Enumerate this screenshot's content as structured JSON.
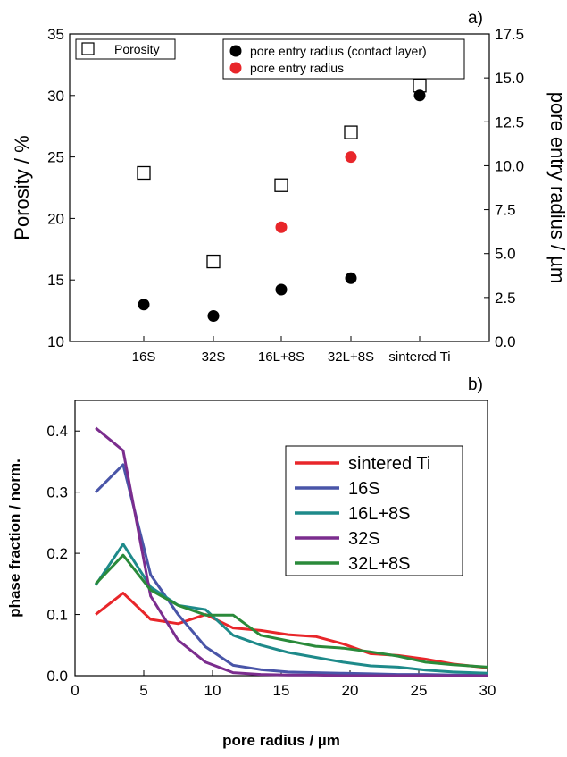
{
  "chart_data": [
    {
      "panel_label": "a)",
      "type": "scatter",
      "categories": [
        "16S",
        "32S",
        "16L+8S",
        "32L+8S",
        "sintered Ti"
      ],
      "ylabel": "Porosity / %",
      "ylim": [
        10,
        35
      ],
      "yticks": [
        10,
        15,
        20,
        25,
        30,
        35
      ],
      "y2label": "pore entry radius / µm",
      "y2lim": [
        0,
        17.5
      ],
      "y2ticks": [
        "0.0",
        "2.5",
        "5.0",
        "7.5",
        "10.0",
        "12.5",
        "15.0",
        "17.5"
      ],
      "series": [
        {
          "name": "Porosity",
          "axis": "left",
          "marker": "open-square",
          "color": "#000000",
          "values": [
            23.7,
            16.5,
            22.7,
            27.0,
            30.8
          ]
        },
        {
          "name": "pore entry radius (contact layer)",
          "axis": "right",
          "marker": "filled-circle",
          "color": "#000000",
          "values": [
            2.1,
            1.45,
            2.95,
            3.6,
            14.0
          ]
        },
        {
          "name": "pore entry radius",
          "axis": "right",
          "marker": "filled-circle",
          "color": "#e8262a",
          "values": [
            null,
            null,
            6.5,
            10.5,
            null
          ]
        }
      ],
      "legends": [
        {
          "position": "top-left",
          "entries": [
            "Porosity"
          ]
        },
        {
          "position": "top-right",
          "entries": [
            "pore entry radius (contact layer)",
            "pore entry radius"
          ]
        }
      ]
    },
    {
      "panel_label": "b)",
      "type": "line",
      "xlabel": "pore radius / µm",
      "ylabel": "phase fraction / norm.",
      "xlim": [
        0,
        30
      ],
      "ylim": [
        0,
        0.45
      ],
      "xticks": [
        0,
        5,
        10,
        15,
        20,
        25,
        30
      ],
      "yticks": [
        "0.0",
        "0.1",
        "0.2",
        "0.3",
        "0.4"
      ],
      "x": [
        1.5,
        3.5,
        5.5,
        7.5,
        9.5,
        11.5,
        13.5,
        15.5,
        17.5,
        19.5,
        21.5,
        23.5,
        25.5,
        27.5,
        30
      ],
      "legend_position": "top-right",
      "series": [
        {
          "name": "sintered Ti",
          "color": "#e8262a",
          "values": [
            0.1,
            0.135,
            0.092,
            0.085,
            0.1,
            0.078,
            0.074,
            0.067,
            0.064,
            0.052,
            0.036,
            0.033,
            0.027,
            0.019,
            0.013
          ]
        },
        {
          "name": "16S",
          "color": "#4955a8",
          "values": [
            0.3,
            0.345,
            0.165,
            0.1,
            0.047,
            0.017,
            0.01,
            0.006,
            0.005,
            0.004,
            0.003,
            0.002,
            0.002,
            0.001,
            0.001
          ]
        },
        {
          "name": "16L+8S",
          "color": "#1e8a8a",
          "values": [
            0.148,
            0.215,
            0.145,
            0.115,
            0.108,
            0.066,
            0.05,
            0.038,
            0.03,
            0.022,
            0.016,
            0.014,
            0.009,
            0.006,
            0.004
          ]
        },
        {
          "name": "32S",
          "color": "#7b2d8e",
          "values": [
            0.405,
            0.368,
            0.13,
            0.058,
            0.022,
            0.005,
            0.002,
            0.001,
            0.001,
            0.0,
            0.0,
            0.0,
            0.0,
            0.0,
            0.0
          ]
        },
        {
          "name": "32L+8S",
          "color": "#2a8a3a",
          "values": [
            0.15,
            0.197,
            0.14,
            0.115,
            0.099,
            0.099,
            0.066,
            0.057,
            0.048,
            0.045,
            0.039,
            0.032,
            0.022,
            0.018,
            0.014
          ]
        }
      ]
    }
  ]
}
